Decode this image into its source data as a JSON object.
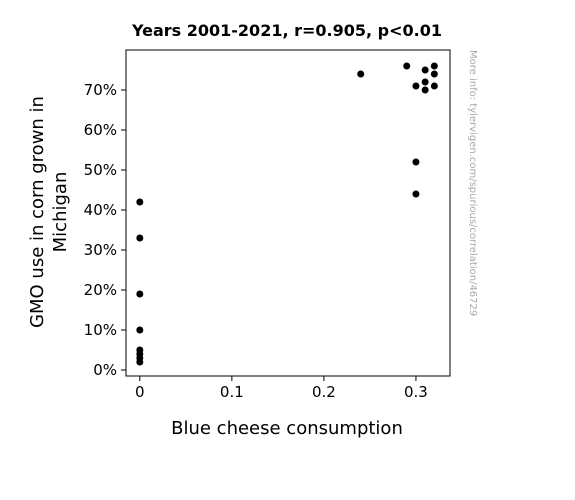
{
  "chart_data": {
    "type": "scatter",
    "title": "Years 2001-2021, r=0.905, p<0.01",
    "xlabel": "Blue cheese consumption",
    "ylabel_lines": [
      "GMO use in corn grown in",
      "Michigan"
    ],
    "watermark": "More info: tylervigen.com/spurious/correlation/46729",
    "xlim": [
      -0.015,
      0.337
    ],
    "ylim": [
      -1.5,
      80
    ],
    "x_ticks": [
      0,
      0.1,
      0.2,
      0.3
    ],
    "x_tick_labels": [
      "0",
      "0.1",
      "0.2",
      "0.3"
    ],
    "y_ticks": [
      0,
      10,
      20,
      30,
      40,
      50,
      60,
      70
    ],
    "y_tick_labels": [
      "0%",
      "10%",
      "20%",
      "30%",
      "40%",
      "50%",
      "60%",
      "70%"
    ],
    "grid": false,
    "marker_color": "#000000",
    "points": [
      {
        "x": 0,
        "y": 42
      },
      {
        "x": 0,
        "y": 33
      },
      {
        "x": 0,
        "y": 19
      },
      {
        "x": 0,
        "y": 10
      },
      {
        "x": 0,
        "y": 5
      },
      {
        "x": 0,
        "y": 4
      },
      {
        "x": 0,
        "y": 3
      },
      {
        "x": 0,
        "y": 2
      },
      {
        "x": 0.24,
        "y": 74
      },
      {
        "x": 0.29,
        "y": 76
      },
      {
        "x": 0.3,
        "y": 71
      },
      {
        "x": 0.3,
        "y": 52
      },
      {
        "x": 0.3,
        "y": 44
      },
      {
        "x": 0.31,
        "y": 75
      },
      {
        "x": 0.31,
        "y": 72
      },
      {
        "x": 0.31,
        "y": 70
      },
      {
        "x": 0.32,
        "y": 76
      },
      {
        "x": 0.32,
        "y": 74
      },
      {
        "x": 0.32,
        "y": 71
      }
    ]
  }
}
